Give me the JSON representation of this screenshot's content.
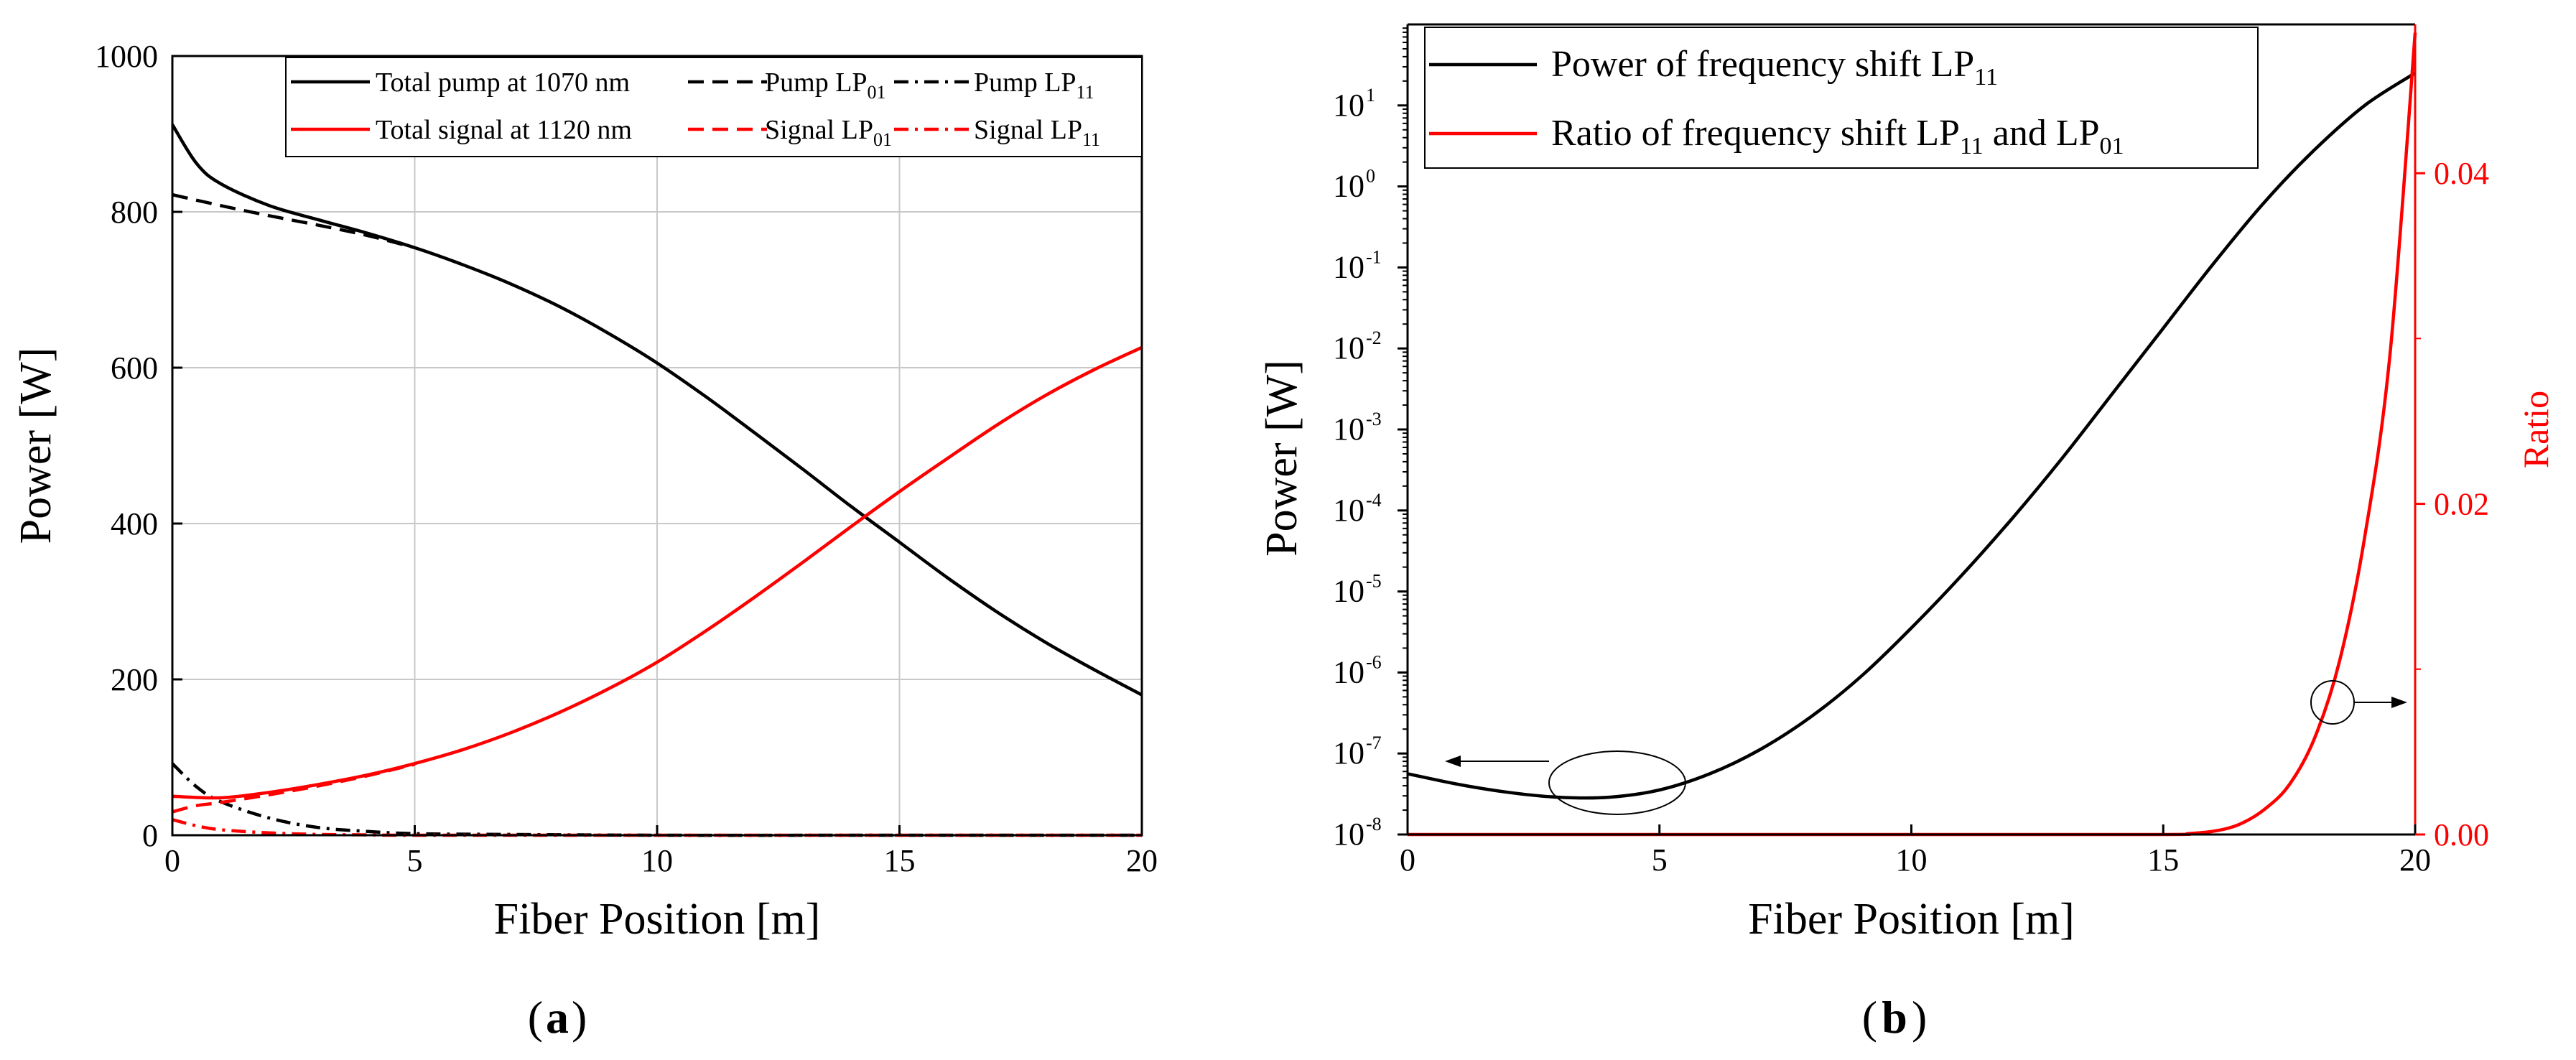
{
  "chart_data": [
    {
      "panel": "a",
      "type": "line",
      "xlabel": "Fiber Position [m]",
      "ylabel": "Power [W]",
      "xlim": [
        0,
        20
      ],
      "ylim": [
        0,
        1000
      ],
      "xticks": [
        0,
        5,
        10,
        15,
        20
      ],
      "yticks": [
        0,
        200,
        400,
        600,
        800,
        1000
      ],
      "xtick_labels": [
        "0",
        "5",
        "10",
        "15",
        "20"
      ],
      "ytick_labels": [
        "0",
        "200",
        "400",
        "600",
        "800",
        "1000"
      ],
      "grid": true,
      "legend_position": "top",
      "series": [
        {
          "name": "Total pump at 1070 nm",
          "color": "#000000",
          "dash": "solid",
          "x": [
            0,
            0.5,
            1,
            2,
            3,
            4,
            5,
            6,
            7,
            8,
            9,
            10,
            11,
            12,
            13,
            14,
            15,
            16,
            17,
            18,
            19,
            20
          ],
          "y": [
            912,
            862,
            836,
            808,
            790,
            773,
            754,
            732,
            707,
            678,
            644,
            606,
            563,
            517,
            470,
            422,
            376,
            330,
            287,
            248,
            213,
            180
          ]
        },
        {
          "name": "Pump LP01",
          "label_main": "Pump LP",
          "label_sub": "01",
          "color": "#000000",
          "dash": "dash",
          "x": [
            0,
            1,
            2,
            3,
            4,
            5
          ],
          "y": [
            822,
            808,
            795,
            783,
            770,
            754
          ]
        },
        {
          "name": "Pump LP11",
          "label_main": "Pump LP",
          "label_sub": "11",
          "color": "#000000",
          "dash": "dashdot",
          "x": [
            0,
            0.5,
            1,
            2,
            3,
            4,
            5,
            7,
            10,
            15,
            20
          ],
          "y": [
            92,
            62,
            43,
            22,
            10,
            5,
            2,
            1,
            0,
            0,
            0
          ]
        },
        {
          "name": "Total signal at 1120 nm",
          "color": "#ff0000",
          "dash": "solid",
          "x": [
            0,
            1,
            2,
            3,
            4,
            5,
            6,
            7,
            8,
            9,
            10,
            11,
            12,
            13,
            14,
            15,
            16,
            17,
            18,
            19,
            20
          ],
          "y": [
            50,
            48,
            55,
            65,
            77,
            92,
            110,
            132,
            158,
            188,
            222,
            262,
            305,
            350,
            396,
            441,
            484,
            526,
            564,
            597,
            626
          ]
        },
        {
          "name": "Signal LP01",
          "label_main": "Signal LP",
          "label_sub": "01",
          "color": "#ff0000",
          "dash": "dash",
          "x": [
            0,
            0.5,
            1,
            2,
            3,
            4,
            5
          ],
          "y": [
            30,
            38,
            42,
            52,
            63,
            76,
            91
          ]
        },
        {
          "name": "Signal LP11",
          "label_main": "Signal LP",
          "label_sub": "11",
          "color": "#ff0000",
          "dash": "dashdot",
          "x": [
            0,
            0.5,
            1,
            2,
            3,
            4,
            5,
            10,
            15,
            20
          ],
          "y": [
            20,
            12,
            7,
            3,
            1,
            0.5,
            0,
            0,
            0,
            0
          ]
        }
      ]
    },
    {
      "panel": "b",
      "type": "line",
      "xlabel": "Fiber Position [m]",
      "ylabel": "Power [W]",
      "y2label": "Ratio",
      "xlim": [
        0,
        20
      ],
      "ylim": [
        1e-08,
        100
      ],
      "yscale": "log",
      "y2lim": [
        0,
        0.049
      ],
      "xticks": [
        0,
        5,
        10,
        15,
        20
      ],
      "xtick_labels": [
        "0",
        "5",
        "10",
        "15",
        "20"
      ],
      "ytick_exponents": [
        "-8",
        "-7",
        "-6",
        "-5",
        "-4",
        "-3",
        "-2",
        "-1",
        "0",
        "1"
      ],
      "ytick_base": "10",
      "y2ticks": [
        0.0,
        0.02,
        0.04
      ],
      "y2tick_labels": [
        "0.00",
        "0.02",
        "0.04"
      ],
      "grid": false,
      "legend_position": "top-left",
      "series": [
        {
          "name": "Power of frequency shift LP11",
          "label_main": "Power of frequency shift LP",
          "label_sub": "11",
          "color": "#000000",
          "axis": "left",
          "x": [
            0,
            1,
            2,
            3,
            4,
            5,
            6,
            7,
            8,
            9,
            10,
            11,
            12,
            13,
            14,
            15,
            16,
            17,
            18,
            19,
            20
          ],
          "log10y": [
            -7.25,
            -7.38,
            -7.48,
            -7.54,
            -7.54,
            -7.45,
            -7.25,
            -6.95,
            -6.55,
            -6.05,
            -5.45,
            -4.8,
            -4.1,
            -3.35,
            -2.55,
            -1.75,
            -0.95,
            -0.2,
            0.45,
            1.0,
            1.4
          ]
        },
        {
          "name": "Ratio of frequency shift LP11 and LP01",
          "label_main": "Ratio of frequency shift LP",
          "label_sub": "11",
          "label_mid": " and LP",
          "label_sub2": "01",
          "color": "#ff0000",
          "axis": "right",
          "x": [
            0,
            10,
            15,
            15.5,
            16,
            16.5,
            17,
            17.5,
            18,
            18.5,
            19,
            19.5,
            20
          ],
          "y": [
            0,
            0,
            0,
            5e-05,
            0.0002,
            0.0006,
            0.0015,
            0.003,
            0.0058,
            0.0105,
            0.018,
            0.029,
            0.0485
          ]
        }
      ],
      "annotations": [
        "arrow-left",
        "arrow-right"
      ]
    }
  ],
  "captions": {
    "a": "a",
    "b": "b",
    "open": "(",
    "close": ")"
  }
}
